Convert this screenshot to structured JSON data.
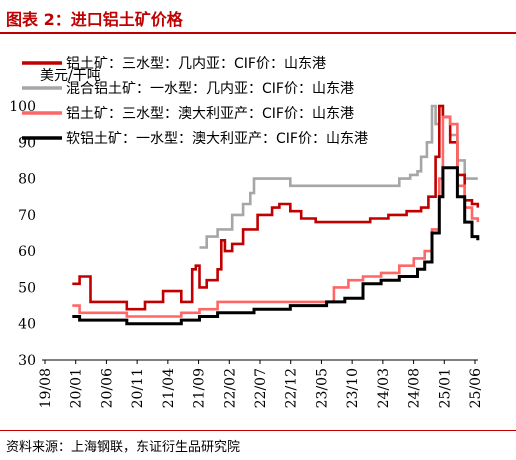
{
  "title": "图表 2：进口铝土矿价格",
  "source": "资料来源：上海钢联，东证衍生品研究院",
  "chart_data": {
    "type": "line",
    "title": "",
    "xlabel": "",
    "ylabel": "美元/干吨",
    "ylim": [
      30,
      100
    ],
    "yticks": [
      "30",
      "40",
      "50",
      "60",
      "70",
      "80",
      "90",
      "100"
    ],
    "xticks": [
      "19/08",
      "20/01",
      "20/06",
      "20/11",
      "21/04",
      "21/09",
      "22/02",
      "22/07",
      "22/12",
      "23/05",
      "23/10",
      "24/03",
      "24/08",
      "25/01",
      "25/06"
    ],
    "grid": false,
    "legend": "top",
    "series": [
      {
        "name": "铝土矿：三水型：几内亚：CIF价：山东港",
        "color": "#c00000",
        "points": [
          [
            20.0,
            51
          ],
          [
            20.1,
            53
          ],
          [
            20.25,
            46
          ],
          [
            20.5,
            46
          ],
          [
            20.75,
            44
          ],
          [
            21.0,
            46
          ],
          [
            21.25,
            49
          ],
          [
            21.5,
            46
          ],
          [
            21.65,
            55
          ],
          [
            21.7,
            56
          ],
          [
            21.75,
            50
          ],
          [
            21.85,
            52
          ],
          [
            22.0,
            55
          ],
          [
            22.05,
            63
          ],
          [
            22.1,
            60
          ],
          [
            22.2,
            62
          ],
          [
            22.35,
            66
          ],
          [
            22.55,
            70
          ],
          [
            22.75,
            72
          ],
          [
            22.85,
            73
          ],
          [
            23.0,
            71
          ],
          [
            23.15,
            69
          ],
          [
            23.35,
            68
          ],
          [
            23.6,
            68
          ],
          [
            23.85,
            68
          ],
          [
            24.1,
            69
          ],
          [
            24.35,
            70
          ],
          [
            24.6,
            71
          ],
          [
            24.8,
            72
          ],
          [
            24.9,
            75
          ],
          [
            25.0,
            86
          ],
          [
            25.05,
            100
          ],
          [
            25.1,
            97
          ],
          [
            25.2,
            90
          ],
          [
            25.3,
            81
          ],
          [
            25.4,
            74
          ],
          [
            25.5,
            73
          ],
          [
            25.58,
            72
          ]
        ]
      },
      {
        "name": "混合铝土矿：一水型：几内亚：CIF价：山东港",
        "color": "#a6a6a6",
        "points": [
          [
            21.75,
            61
          ],
          [
            21.85,
            64
          ],
          [
            22.0,
            66
          ],
          [
            22.2,
            70
          ],
          [
            22.35,
            73
          ],
          [
            22.45,
            76
          ],
          [
            22.5,
            80
          ],
          [
            22.7,
            80
          ],
          [
            22.9,
            80
          ],
          [
            23.0,
            78
          ],
          [
            23.3,
            78
          ],
          [
            23.6,
            78
          ],
          [
            23.9,
            78
          ],
          [
            24.3,
            78
          ],
          [
            24.5,
            80
          ],
          [
            24.65,
            81
          ],
          [
            24.75,
            82
          ],
          [
            24.8,
            86
          ],
          [
            24.88,
            90
          ],
          [
            24.95,
            100
          ],
          [
            25.0,
            95
          ],
          [
            25.05,
            100
          ],
          [
            25.1,
            97
          ],
          [
            25.2,
            92
          ],
          [
            25.3,
            85
          ],
          [
            25.4,
            80
          ],
          [
            25.58,
            80
          ]
        ]
      },
      {
        "name": "铝土矿：三水型：澳大利亚产：CIF价：山东港",
        "color": "#ff6666",
        "points": [
          [
            20.0,
            45
          ],
          [
            20.1,
            43
          ],
          [
            20.25,
            43
          ],
          [
            20.5,
            43
          ],
          [
            20.75,
            42
          ],
          [
            21.0,
            42
          ],
          [
            21.25,
            42
          ],
          [
            21.5,
            43
          ],
          [
            21.75,
            44
          ],
          [
            22.0,
            46
          ],
          [
            22.5,
            46
          ],
          [
            23.0,
            46
          ],
          [
            23.5,
            46
          ],
          [
            23.6,
            50
          ],
          [
            23.8,
            52
          ],
          [
            24.0,
            53
          ],
          [
            24.25,
            54
          ],
          [
            24.5,
            56
          ],
          [
            24.7,
            58
          ],
          [
            24.85,
            60
          ],
          [
            24.95,
            66
          ],
          [
            25.05,
            80
          ],
          [
            25.1,
            97
          ],
          [
            25.2,
            95
          ],
          [
            25.3,
            78
          ],
          [
            25.4,
            72
          ],
          [
            25.5,
            69
          ],
          [
            25.58,
            68
          ]
        ]
      },
      {
        "name": "软铝土矿：一水型：澳大利亚产：CIF价：山东港",
        "color": "#000000",
        "points": [
          [
            20.0,
            42
          ],
          [
            20.1,
            41
          ],
          [
            20.25,
            41
          ],
          [
            20.5,
            41
          ],
          [
            20.75,
            40
          ],
          [
            21.0,
            40
          ],
          [
            21.25,
            40
          ],
          [
            21.5,
            41
          ],
          [
            21.75,
            42
          ],
          [
            22.0,
            43
          ],
          [
            22.5,
            44
          ],
          [
            23.0,
            45
          ],
          [
            23.5,
            46
          ],
          [
            23.75,
            47
          ],
          [
            24.0,
            51
          ],
          [
            24.25,
            52
          ],
          [
            24.5,
            53
          ],
          [
            24.75,
            55
          ],
          [
            24.85,
            57
          ],
          [
            24.95,
            65
          ],
          [
            25.05,
            75
          ],
          [
            25.1,
            83
          ],
          [
            25.2,
            83
          ],
          [
            25.3,
            75
          ],
          [
            25.4,
            68
          ],
          [
            25.5,
            64
          ],
          [
            25.58,
            63
          ]
        ]
      }
    ]
  }
}
